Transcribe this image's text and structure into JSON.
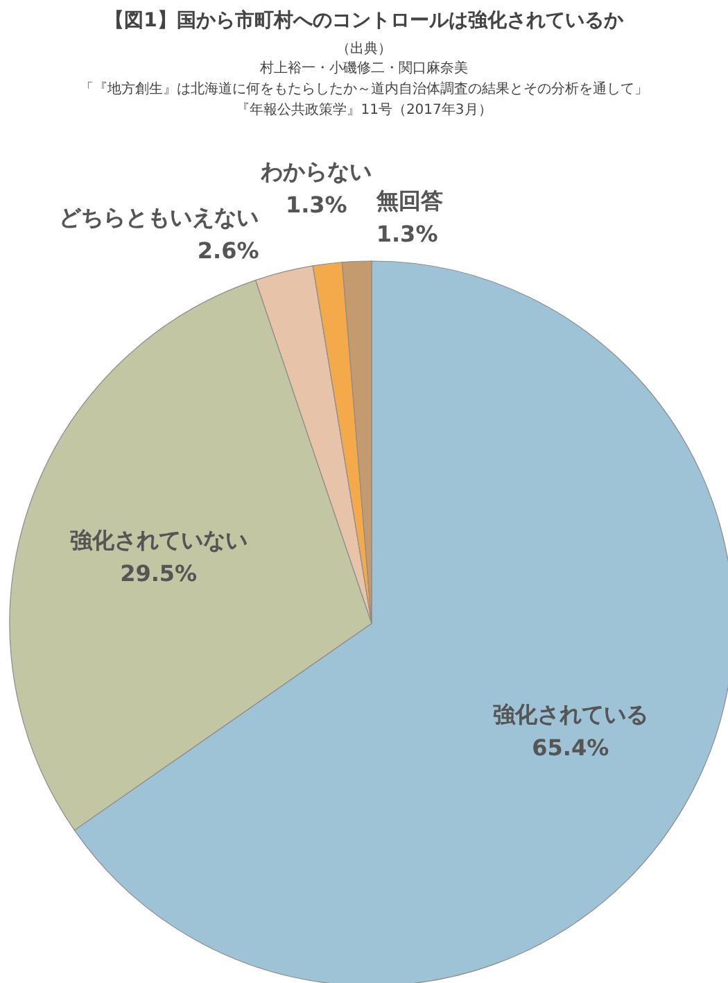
{
  "chart_data": {
    "type": "pie",
    "title": "【図1】国から市町村へのコントロールは強化されているか",
    "subtitle": "（出典）",
    "annotations": [
      "村上裕一・小磯修二・関口麻奈美",
      "「『地方創生』は北海道に何をもたらしたか～道内自治体調査の結果とその分析を通して」",
      "『年報公共政策学』11号（2017年3月）"
    ],
    "categories": [
      "強化されている",
      "強化されていない",
      "どちらともいえない",
      "わからない",
      "無回答"
    ],
    "values": [
      65.4,
      29.5,
      2.6,
      1.3,
      1.3
    ],
    "colors": [
      "#9fc3d6",
      "#c2c6a2",
      "#e7c4a9",
      "#f4a94a",
      "#c49b6f"
    ],
    "value_labels": [
      "65.4%",
      "29.5%",
      "2.6%",
      "1.3%",
      "1.3%"
    ]
  }
}
